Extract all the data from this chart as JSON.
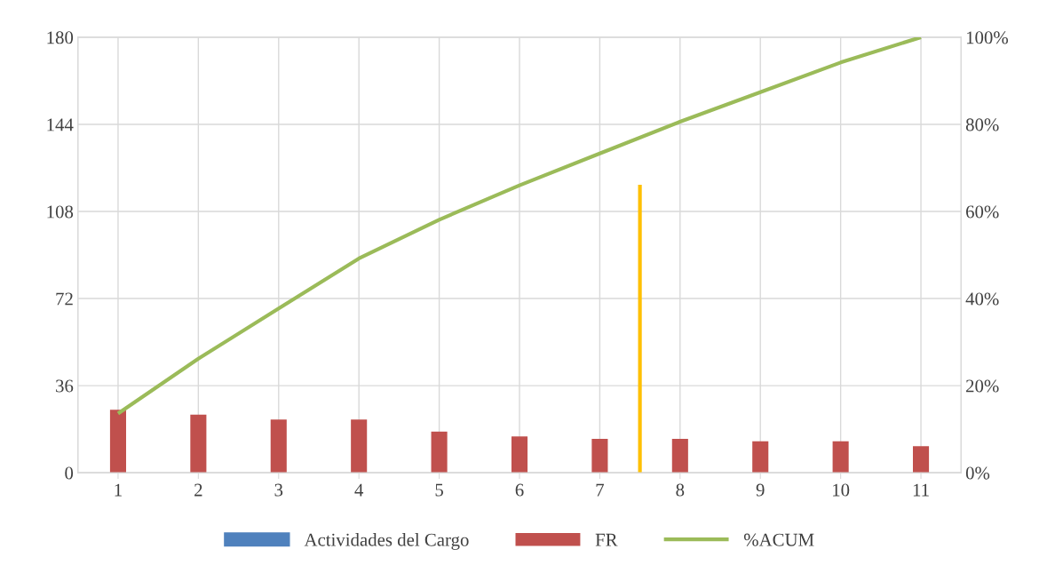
{
  "chart_data": {
    "type": "bar",
    "x": [
      1,
      2,
      3,
      4,
      5,
      6,
      7,
      8,
      9,
      10,
      11
    ],
    "xlim": [
      0.5,
      11.5
    ],
    "xticks": [
      1,
      2,
      3,
      4,
      5,
      6,
      7,
      8,
      9,
      10,
      11
    ],
    "ylim": [
      0,
      180
    ],
    "yticks": [
      0,
      36,
      72,
      108,
      144,
      180
    ],
    "y2lim": [
      0,
      100
    ],
    "y2ticks": [
      {
        "value": 0,
        "label": "0%"
      },
      {
        "value": 20,
        "label": "20%"
      },
      {
        "value": 40,
        "label": "40%"
      },
      {
        "value": 60,
        "label": "60%"
      },
      {
        "value": 80,
        "label": "80%"
      },
      {
        "value": 100,
        "label": "100%"
      }
    ],
    "series": [
      {
        "name": "Actividades del Cargo",
        "color": "#4f81bd",
        "values": [
          null,
          null,
          null,
          null,
          null,
          null,
          null,
          null,
          null,
          null,
          null
        ]
      },
      {
        "name": "FR",
        "color": "#c0504d",
        "values": [
          26,
          24,
          22,
          22,
          17,
          15,
          14,
          14,
          13,
          13,
          11
        ]
      },
      {
        "name": "%ACUM",
        "type": "line",
        "axis": "y2",
        "color": "#9bbb59",
        "values": [
          13.6,
          26.2,
          37.7,
          49.2,
          58.1,
          66.0,
          73.3,
          80.6,
          87.4,
          94.2,
          100
        ]
      },
      {
        "type": "line",
        "color": "#ffc000",
        "x": [
          7.5,
          7.5
        ],
        "values": [
          0,
          119
        ]
      }
    ],
    "grid": true,
    "legend": "bottom"
  }
}
